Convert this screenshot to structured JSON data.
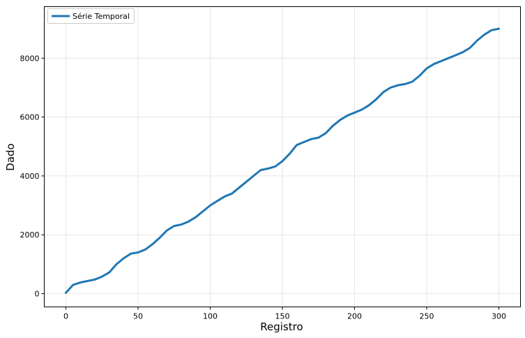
{
  "chart_data": {
    "type": "line",
    "title": "",
    "xlabel": "Registro",
    "ylabel": "Dado",
    "xlim": [
      -15,
      315
    ],
    "ylim": [
      -450,
      9750
    ],
    "x_ticks": [
      0,
      50,
      100,
      150,
      200,
      250,
      300
    ],
    "y_ticks": [
      0,
      2000,
      4000,
      6000,
      8000
    ],
    "grid": true,
    "legend": {
      "placement": "top-left"
    },
    "series": [
      {
        "name": "Série Temporal",
        "color": "#1f77b4",
        "x": [
          0,
          5,
          10,
          15,
          20,
          25,
          30,
          35,
          40,
          45,
          50,
          55,
          60,
          65,
          70,
          75,
          80,
          85,
          90,
          95,
          100,
          105,
          110,
          115,
          120,
          125,
          130,
          135,
          140,
          145,
          150,
          155,
          160,
          165,
          170,
          175,
          180,
          185,
          190,
          195,
          200,
          205,
          210,
          215,
          220,
          225,
          230,
          235,
          240,
          245,
          250,
          255,
          260,
          265,
          270,
          275,
          280,
          285,
          290,
          295,
          300
        ],
        "y": [
          30,
          300,
          380,
          430,
          480,
          580,
          720,
          1000,
          1200,
          1360,
          1400,
          1500,
          1680,
          1900,
          2150,
          2300,
          2350,
          2450,
          2600,
          2800,
          3000,
          3150,
          3300,
          3400,
          3600,
          3800,
          4000,
          4200,
          4250,
          4320,
          4500,
          4750,
          5050,
          5150,
          5250,
          5300,
          5450,
          5700,
          5900,
          6050,
          6150,
          6250,
          6400,
          6600,
          6850,
          7000,
          7080,
          7120,
          7200,
          7400,
          7650,
          7800,
          7900,
          8000,
          8100,
          8200,
          8350,
          8600,
          8800,
          8950,
          9000
        ]
      }
    ]
  }
}
